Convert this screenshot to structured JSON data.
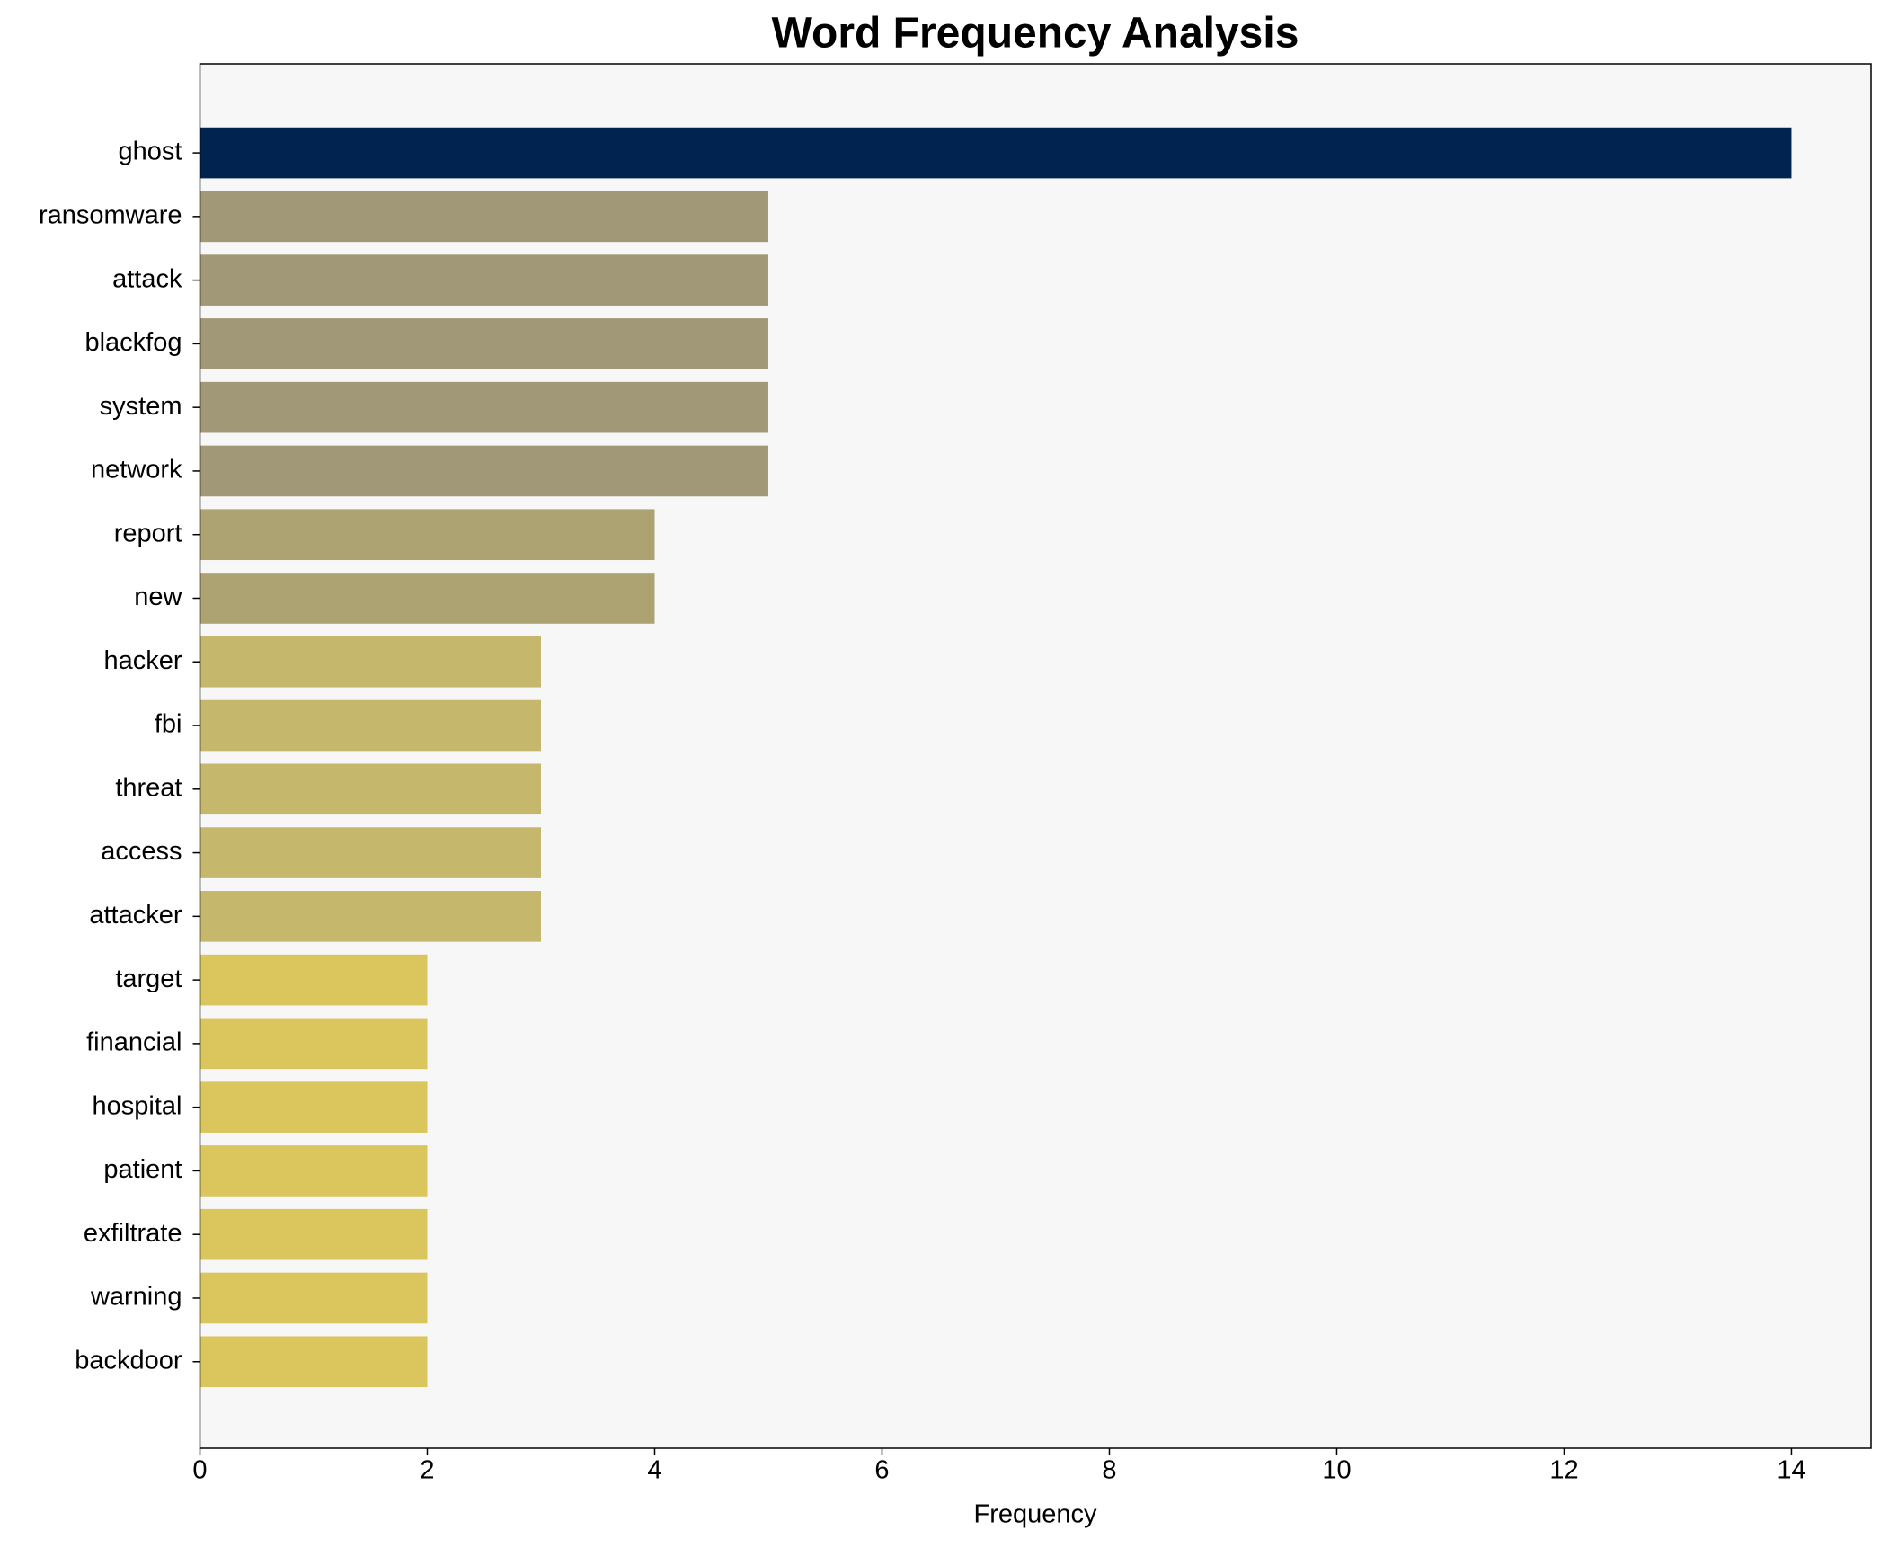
{
  "chart_data": {
    "type": "bar",
    "orientation": "horizontal",
    "title": "Word Frequency Analysis",
    "xlabel": "Frequency",
    "categories": [
      "ghost",
      "ransomware",
      "attack",
      "blackfog",
      "system",
      "network",
      "report",
      "new",
      "hacker",
      "fbi",
      "threat",
      "access",
      "attacker",
      "target",
      "financial",
      "hospital",
      "patient",
      "exfiltrate",
      "warning",
      "backdoor"
    ],
    "values": [
      14,
      5,
      5,
      5,
      5,
      5,
      4,
      4,
      3,
      3,
      3,
      3,
      3,
      2,
      2,
      2,
      2,
      2,
      2,
      2
    ],
    "colors": [
      "#00234f",
      "#a09877",
      "#a09877",
      "#a09877",
      "#a09877",
      "#a09877",
      "#aca272",
      "#aca272",
      "#c5b76b",
      "#c5b76b",
      "#c5b76b",
      "#c5b76b",
      "#c5b76b",
      "#dac65d",
      "#dac65d",
      "#dac65d",
      "#dac65d",
      "#dac65d",
      "#dac65d",
      "#dac65d"
    ],
    "xlim": [
      0,
      14.7
    ],
    "xticks": [
      0,
      2,
      4,
      6,
      8,
      10,
      12,
      14
    ],
    "grid": false
  }
}
